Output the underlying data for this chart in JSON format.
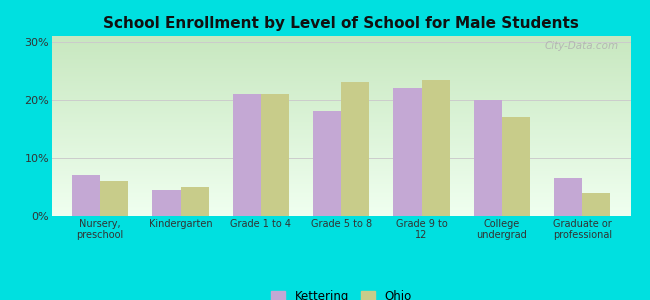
{
  "title": "School Enrollment by Level of School for Male Students",
  "categories": [
    "Nursery,\npreschool",
    "Kindergarten",
    "Grade 1 to 4",
    "Grade 5 to 8",
    "Grade 9 to\n12",
    "College\nundergrad",
    "Graduate or\nprofessional"
  ],
  "kettering": [
    7.0,
    4.5,
    21.0,
    18.0,
    22.0,
    20.0,
    6.5
  ],
  "ohio": [
    6.0,
    5.0,
    21.0,
    23.0,
    23.5,
    17.0,
    4.0
  ],
  "kettering_color": "#c4a8d4",
  "ohio_color": "#c8cc8a",
  "background_color": "#00e0e0",
  "grid_color": "#cccccc",
  "title_fontsize": 11,
  "yticks": [
    0,
    10,
    20,
    30
  ],
  "ylim": [
    0,
    31
  ],
  "bar_width": 0.35,
  "legend_labels": [
    "Kettering",
    "Ohio"
  ],
  "watermark": "City-Data.com"
}
